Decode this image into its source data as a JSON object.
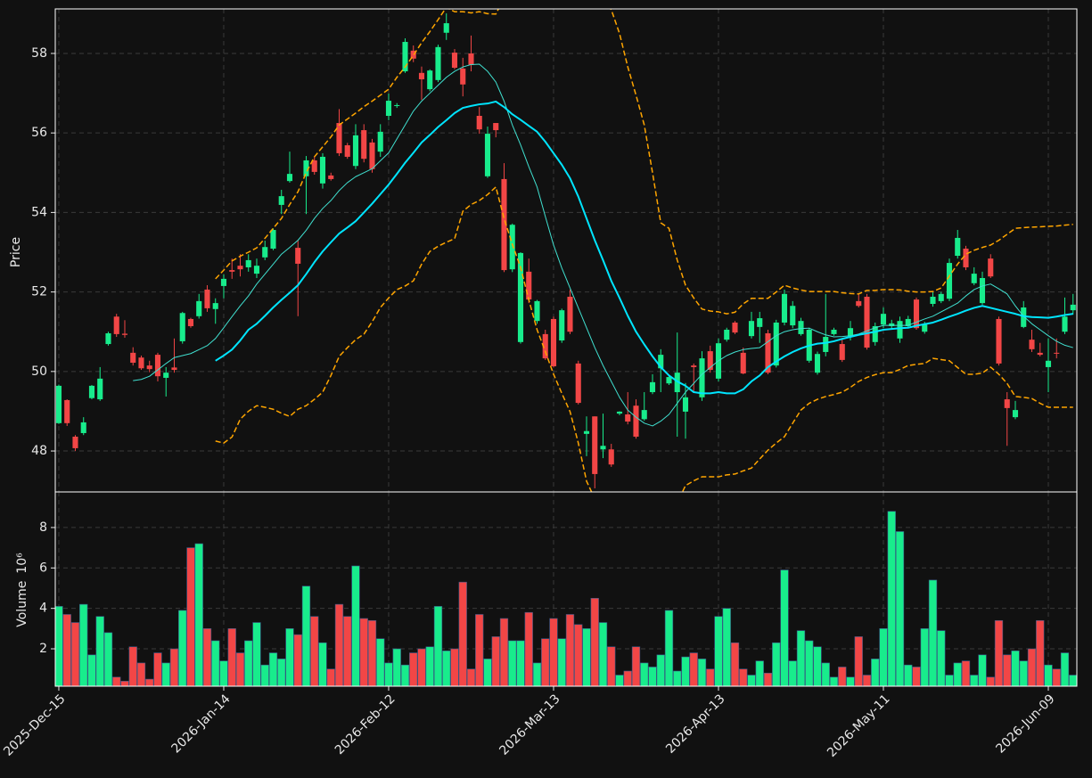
{
  "chart_data": {
    "type": "candlestick",
    "categories": [
      "2025-Dec-15",
      null,
      null,
      null,
      null,
      null,
      null,
      null,
      null,
      null,
      null,
      null,
      null,
      null,
      null,
      null,
      null,
      null,
      null,
      null,
      "2026-Jan-14",
      null,
      null,
      null,
      null,
      null,
      null,
      null,
      null,
      null,
      null,
      null,
      null,
      null,
      null,
      null,
      null,
      null,
      null,
      null,
      "2026-Feb-12",
      null,
      null,
      null,
      null,
      null,
      null,
      null,
      null,
      null,
      null,
      null,
      null,
      null,
      null,
      null,
      null,
      null,
      null,
      null,
      "2026-Mar-13",
      null,
      null,
      null,
      null,
      null,
      null,
      null,
      null,
      null,
      null,
      null,
      null,
      null,
      null,
      null,
      null,
      null,
      null,
      null,
      "2026-Apr-13",
      null,
      null,
      null,
      null,
      null,
      null,
      null,
      null,
      null,
      null,
      null,
      null,
      null,
      null,
      null,
      null,
      null,
      null,
      null,
      "2026-May-11",
      null,
      null,
      null,
      null,
      null,
      null,
      null,
      null,
      null,
      null,
      null,
      null,
      null,
      null,
      null,
      null,
      null,
      null,
      null,
      "2026-Jun-09",
      null,
      null,
      null
    ],
    "xlim": [
      -0.43,
      123.46
    ],
    "open": [
      48.7,
      49.28,
      48.36,
      48.45,
      49.33,
      49.3,
      50.69,
      51.38,
      50.95,
      50.47,
      50.35,
      50.15,
      50.42,
      49.84,
      50.1,
      50.76,
      51.32,
      51.39,
      52.06,
      51.57,
      52.15,
      52.55,
      52.66,
      52.62,
      52.46,
      52.87,
      53.09,
      54.19,
      54.79,
      53.11,
      54.91,
      55.31,
      54.73,
      54.93,
      56.25,
      55.69,
      55.17,
      56.07,
      55.76,
      55.53,
      56.43,
      56.68,
      57.55,
      58.07,
      57.51,
      57.1,
      57.33,
      58.52,
      58.02,
      57.62,
      58.0,
      56.43,
      54.91,
      56.25,
      54.84,
      52.57,
      50.74,
      52.51,
      51.27,
      50.94,
      51.32,
      50.78,
      51.88,
      50.2,
      48.43,
      48.87,
      48.04,
      48.04,
      48.94,
      48.92,
      49.14,
      48.8,
      49.48,
      50.08,
      49.7,
      49.48,
      48.99,
      50.15,
      49.35,
      50.51,
      49.82,
      50.8,
      51.23,
      50.47,
      50.89,
      51.12,
      50.96,
      50.15,
      51.23,
      51.16,
      50.94,
      50.27,
      49.97,
      50.49,
      50.94,
      50.69,
      50.89,
      51.77,
      51.88,
      50.74,
      51.18,
      51.14,
      50.83,
      51.14,
      51.81,
      51.0,
      51.7,
      51.77,
      51.83,
      52.91,
      53.09,
      52.22,
      51.72,
      52.84,
      51.32,
      49.3,
      48.85,
      51.12,
      50.8,
      50.47,
      50.11,
      50.47,
      51.0,
      51.54
    ],
    "high": [
      49.67,
      49.3,
      48.4,
      48.85,
      49.66,
      50.11,
      51.0,
      51.45,
      51.29,
      50.61,
      50.4,
      50.27,
      50.47,
      50.11,
      50.83,
      51.5,
      51.35,
      51.95,
      52.17,
      51.84,
      52.44,
      52.84,
      52.95,
      52.95,
      52.84,
      53.29,
      53.6,
      54.57,
      55.53,
      53.29,
      55.42,
      55.4,
      55.49,
      55.0,
      56.6,
      55.75,
      56.22,
      56.22,
      55.85,
      56.22,
      56.99,
      56.75,
      58.38,
      58.2,
      57.67,
      57.6,
      58.22,
      59.01,
      58.11,
      57.89,
      58.45,
      56.65,
      56.16,
      56.25,
      55.24,
      53.72,
      53.0,
      52.84,
      51.8,
      51.05,
      51.38,
      51.58,
      52.06,
      50.27,
      48.87,
      48.87,
      48.94,
      48.18,
      49.0,
      49.48,
      49.3,
      49.48,
      49.93,
      50.56,
      49.88,
      50.98,
      49.71,
      50.2,
      50.51,
      50.65,
      50.83,
      51.1,
      51.27,
      50.6,
      51.5,
      51.5,
      51.05,
      51.3,
      52.06,
      51.77,
      51.35,
      51.1,
      50.5,
      51.95,
      51.1,
      50.83,
      51.27,
      51.95,
      51.95,
      51.23,
      51.61,
      51.3,
      51.38,
      51.4,
      51.86,
      51.25,
      51.99,
      52.0,
      52.84,
      53.56,
      53.16,
      52.62,
      52.51,
      52.95,
      51.38,
      49.48,
      49.26,
      51.77,
      51.05,
      50.72,
      50.83,
      50.83,
      51.86,
      51.95
    ],
    "low": [
      48.68,
      48.63,
      48.0,
      48.4,
      49.3,
      49.26,
      50.65,
      50.87,
      50.85,
      50.15,
      50.04,
      49.98,
      49.75,
      49.37,
      49.97,
      50.7,
      51.1,
      51.33,
      51.5,
      51.2,
      51.84,
      52.33,
      52.39,
      52.51,
      52.35,
      52.8,
      53.05,
      53.96,
      54.75,
      51.39,
      53.96,
      54.95,
      54.6,
      54.8,
      55.42,
      55.35,
      55.09,
      55.26,
      55.0,
      55.4,
      56.32,
      56.63,
      57.51,
      57.78,
      56.83,
      57.05,
      57.28,
      58.34,
      57.6,
      56.92,
      57.55,
      55.98,
      54.87,
      55.89,
      52.5,
      52.5,
      50.7,
      51.72,
      51.2,
      50.29,
      50.1,
      50.72,
      50.94,
      49.17,
      47.87,
      47.06,
      47.82,
      47.6,
      48.9,
      48.67,
      48.31,
      48.76,
      49.43,
      49.48,
      49.66,
      48.36,
      48.31,
      49.48,
      49.26,
      49.97,
      49.75,
      50.75,
      50.94,
      49.93,
      50.83,
      50.72,
      49.93,
      50.1,
      51.16,
      51.09,
      50.9,
      50.22,
      49.92,
      50.38,
      50.9,
      50.24,
      50.78,
      51.61,
      50.55,
      50.65,
      51.09,
      51.05,
      50.72,
      51.1,
      51.05,
      50.95,
      51.63,
      51.72,
      51.77,
      52.84,
      52.55,
      52.17,
      51.68,
      52.35,
      50.15,
      48.13,
      48.8,
      51.09,
      50.49,
      50.38,
      49.48,
      50.33,
      50.94,
      51.43
    ],
    "close": [
      49.64,
      48.7,
      48.07,
      48.72,
      49.64,
      49.82,
      50.96,
      50.94,
      50.92,
      50.22,
      50.08,
      50.06,
      49.88,
      49.97,
      50.04,
      51.47,
      51.14,
      51.77,
      51.59,
      51.72,
      52.33,
      52.51,
      52.57,
      52.8,
      52.66,
      53.13,
      53.56,
      54.41,
      54.97,
      52.71,
      55.31,
      55.02,
      55.4,
      54.84,
      55.49,
      55.4,
      55.94,
      55.35,
      55.09,
      56.03,
      56.81,
      56.7,
      58.29,
      57.87,
      57.35,
      57.57,
      58.16,
      58.76,
      57.64,
      57.22,
      57.71,
      56.09,
      55.98,
      56.07,
      52.55,
      53.69,
      52.98,
      51.81,
      51.77,
      50.33,
      50.13,
      51.54,
      51.0,
      49.21,
      48.5,
      47.42,
      48.13,
      47.66,
      48.99,
      48.74,
      48.36,
      49.03,
      49.73,
      50.42,
      49.86,
      49.97,
      49.35,
      50.11,
      50.33,
      50.04,
      50.71,
      51.05,
      50.98,
      49.95,
      51.27,
      51.34,
      49.97,
      51.23,
      51.95,
      51.65,
      51.27,
      51.05,
      50.44,
      50.87,
      51.05,
      50.29,
      51.09,
      51.65,
      50.6,
      51.14,
      51.45,
      51.21,
      51.27,
      51.32,
      51.09,
      51.18,
      51.88,
      51.95,
      52.73,
      53.36,
      52.62,
      52.46,
      52.35,
      52.39,
      50.2,
      49.08,
      49.03,
      51.61,
      50.56,
      50.42,
      50.27,
      50.45,
      51.38,
      51.68
    ],
    "volume": [
      4.1,
      3.7,
      3.3,
      4.2,
      1.7,
      3.6,
      2.8,
      0.6,
      0.4,
      2.1,
      1.3,
      0.5,
      1.8,
      1.3,
      2.0,
      3.9,
      7.0,
      7.2,
      3.0,
      2.4,
      1.4,
      3.0,
      1.8,
      2.4,
      3.3,
      1.2,
      1.8,
      1.5,
      3.0,
      2.7,
      5.1,
      3.6,
      2.3,
      1.0,
      4.2,
      3.6,
      6.1,
      3.5,
      3.4,
      2.5,
      1.3,
      2.0,
      1.2,
      1.8,
      2.0,
      2.1,
      4.1,
      1.9,
      2.0,
      5.3,
      1.0,
      3.7,
      1.5,
      2.6,
      3.5,
      2.4,
      2.4,
      3.8,
      1.3,
      2.5,
      3.5,
      2.5,
      3.7,
      3.2,
      3.0,
      4.5,
      3.3,
      2.1,
      0.7,
      0.9,
      2.1,
      1.3,
      1.1,
      1.7,
      3.9,
      0.9,
      1.6,
      1.8,
      1.5,
      1.0,
      3.6,
      4.0,
      2.3,
      1.0,
      0.7,
      1.4,
      0.8,
      2.3,
      5.9,
      1.4,
      2.9,
      2.4,
      2.1,
      1.3,
      0.6,
      1.1,
      0.6,
      2.6,
      0.7,
      1.5,
      3.0,
      8.8,
      7.8,
      1.2,
      1.1,
      3.0,
      5.4,
      2.9,
      0.7,
      1.3,
      1.4,
      0.7,
      1.7,
      0.6,
      3.4,
      1.7,
      1.9,
      1.4,
      2.0,
      3.4,
      1.2,
      1.0,
      1.8,
      0.7
    ],
    "up_color": "#18ec8c",
    "down_color": "#f24646",
    "ylim": [
      46.97,
      59.12
    ],
    "yticks": [
      48,
      50,
      52,
      54,
      56,
      58
    ],
    "ylabel": "Price",
    "volume_ylim": [
      0.15,
      9.76
    ],
    "volume_yticks": [
      2,
      4,
      6,
      8
    ],
    "volume_ylabel": "Volume",
    "volume_multiplier": "10⁶",
    "grid": true,
    "overlays": [
      {
        "color": "#40e0d0",
        "width": 1,
        "dashed": false,
        "values": [
          null,
          null,
          null,
          null,
          null,
          null,
          null,
          null,
          null,
          49.77,
          49.8,
          49.88,
          50.04,
          50.2,
          50.35,
          50.4,
          50.45,
          50.55,
          50.65,
          50.83,
          51.1,
          51.38,
          51.65,
          51.9,
          52.2,
          52.45,
          52.7,
          52.95,
          53.12,
          53.3,
          53.55,
          53.85,
          54.1,
          54.3,
          54.55,
          54.75,
          54.9,
          55.0,
          55.1,
          55.3,
          55.5,
          55.85,
          56.2,
          56.55,
          56.8,
          57.0,
          57.2,
          57.4,
          57.55,
          57.66,
          57.72,
          57.73,
          57.55,
          57.28,
          56.8,
          56.2,
          55.7,
          55.15,
          54.64,
          53.9,
          53.18,
          52.6,
          52.1,
          51.6,
          51.1,
          50.6,
          50.15,
          49.75,
          49.35,
          49.03,
          48.85,
          48.7,
          48.63,
          48.75,
          48.92,
          49.2,
          49.48,
          49.7,
          49.93,
          50.1,
          50.27,
          50.4,
          50.49,
          50.55,
          50.58,
          50.6,
          50.75,
          50.9,
          51.0,
          51.05,
          51.08,
          51.09,
          51.0,
          50.92,
          50.87,
          50.88,
          50.9,
          50.94,
          51.02,
          51.1,
          51.16,
          51.16,
          51.16,
          51.16,
          51.24,
          51.32,
          51.39,
          51.5,
          51.61,
          51.72,
          51.9,
          52.06,
          52.15,
          52.2,
          52.08,
          51.95,
          51.65,
          51.39,
          51.2,
          51.05,
          50.9,
          50.76,
          50.66,
          50.6
        ]
      },
      {
        "color": "#00e5ff",
        "width": 2,
        "dashed": false,
        "values": [
          null,
          null,
          null,
          null,
          null,
          null,
          null,
          null,
          null,
          null,
          null,
          null,
          null,
          null,
          null,
          null,
          null,
          null,
          null,
          50.27,
          50.4,
          50.55,
          50.78,
          51.05,
          51.2,
          51.4,
          51.61,
          51.8,
          51.98,
          52.17,
          52.45,
          52.75,
          53.02,
          53.25,
          53.47,
          53.62,
          53.78,
          54.0,
          54.22,
          54.46,
          54.7,
          54.97,
          55.25,
          55.5,
          55.76,
          55.95,
          56.15,
          56.32,
          56.5,
          56.63,
          56.68,
          56.72,
          56.74,
          56.79,
          56.65,
          56.47,
          56.33,
          56.18,
          56.03,
          55.78,
          55.49,
          55.2,
          54.86,
          54.4,
          53.85,
          53.3,
          52.8,
          52.28,
          51.85,
          51.4,
          51.0,
          50.68,
          50.38,
          50.11,
          49.9,
          49.75,
          49.64,
          49.48,
          49.45,
          49.45,
          49.48,
          49.45,
          49.45,
          49.55,
          49.75,
          49.9,
          50.11,
          50.25,
          50.38,
          50.49,
          50.58,
          50.65,
          50.7,
          50.72,
          50.76,
          50.82,
          50.87,
          50.92,
          50.96,
          51.0,
          51.05,
          51.07,
          51.09,
          51.1,
          51.15,
          51.19,
          51.23,
          51.3,
          51.38,
          51.45,
          51.53,
          51.6,
          51.65,
          51.6,
          51.55,
          51.5,
          51.45,
          51.39,
          51.37,
          51.36,
          51.35,
          51.38,
          51.42,
          51.45
        ]
      },
      {
        "color": "#ffa500",
        "width": 1.5,
        "dashed": true,
        "values": [
          null,
          null,
          null,
          null,
          null,
          null,
          null,
          null,
          null,
          null,
          null,
          null,
          null,
          null,
          null,
          null,
          null,
          null,
          null,
          52.33,
          52.55,
          52.78,
          52.9,
          53.0,
          53.11,
          53.35,
          53.6,
          53.85,
          54.2,
          54.52,
          55.0,
          55.4,
          55.65,
          55.9,
          56.2,
          56.35,
          56.5,
          56.66,
          56.8,
          56.95,
          57.1,
          57.4,
          57.66,
          57.95,
          58.27,
          58.55,
          58.85,
          59.16,
          59.05,
          59.05,
          59.02,
          59.05,
          59.0,
          58.99,
          59.4,
          59.7,
          59.9,
          60.1,
          60.3,
          60.45,
          60.5,
          60.5,
          60.4,
          60.2,
          60.0,
          59.7,
          59.4,
          59.1,
          58.5,
          57.66,
          56.95,
          56.2,
          55.0,
          53.74,
          53.6,
          52.8,
          52.17,
          51.85,
          51.57,
          51.52,
          51.5,
          51.45,
          51.49,
          51.7,
          51.84,
          51.84,
          51.84,
          52.0,
          52.17,
          52.1,
          52.05,
          52.01,
          52.01,
          52.01,
          52.01,
          51.98,
          51.96,
          51.95,
          52.04,
          52.04,
          52.06,
          52.06,
          52.05,
          52.02,
          52.0,
          52.0,
          52.01,
          52.1,
          52.4,
          52.7,
          52.95,
          53.05,
          53.12,
          53.18,
          53.3,
          53.45,
          53.6,
          53.62,
          53.63,
          53.64,
          53.65,
          53.66,
          53.68,
          53.7
        ]
      },
      {
        "color": "#ffa500",
        "width": 1.5,
        "dashed": true,
        "values": [
          null,
          null,
          null,
          null,
          null,
          null,
          null,
          null,
          null,
          null,
          null,
          null,
          null,
          null,
          null,
          null,
          null,
          null,
          null,
          48.25,
          48.2,
          48.35,
          48.8,
          49.0,
          49.14,
          49.1,
          49.05,
          48.95,
          48.87,
          49.05,
          49.14,
          49.3,
          49.48,
          49.9,
          50.38,
          50.6,
          50.8,
          50.94,
          51.25,
          51.61,
          51.85,
          52.06,
          52.15,
          52.28,
          52.7,
          53.02,
          53.15,
          53.25,
          53.34,
          54.03,
          54.2,
          54.3,
          54.45,
          54.64,
          53.85,
          53.2,
          52.62,
          51.8,
          51.05,
          50.5,
          49.93,
          49.45,
          48.99,
          48.2,
          47.24,
          46.8,
          46.3,
          45.9,
          45.6,
          45.5,
          45.5,
          45.6,
          45.8,
          46.1,
          46.4,
          46.7,
          47.13,
          47.25,
          47.35,
          47.35,
          47.35,
          47.4,
          47.42,
          47.5,
          47.57,
          47.8,
          48.02,
          48.2,
          48.36,
          48.7,
          49.03,
          49.2,
          49.3,
          49.37,
          49.42,
          49.48,
          49.6,
          49.75,
          49.85,
          49.92,
          49.97,
          49.97,
          50.05,
          50.15,
          50.18,
          50.2,
          50.33,
          50.3,
          50.27,
          50.1,
          49.93,
          49.93,
          49.96,
          50.11,
          49.93,
          49.7,
          49.37,
          49.35,
          49.32,
          49.2,
          49.1,
          49.1,
          49.1,
          49.1
        ]
      }
    ]
  }
}
